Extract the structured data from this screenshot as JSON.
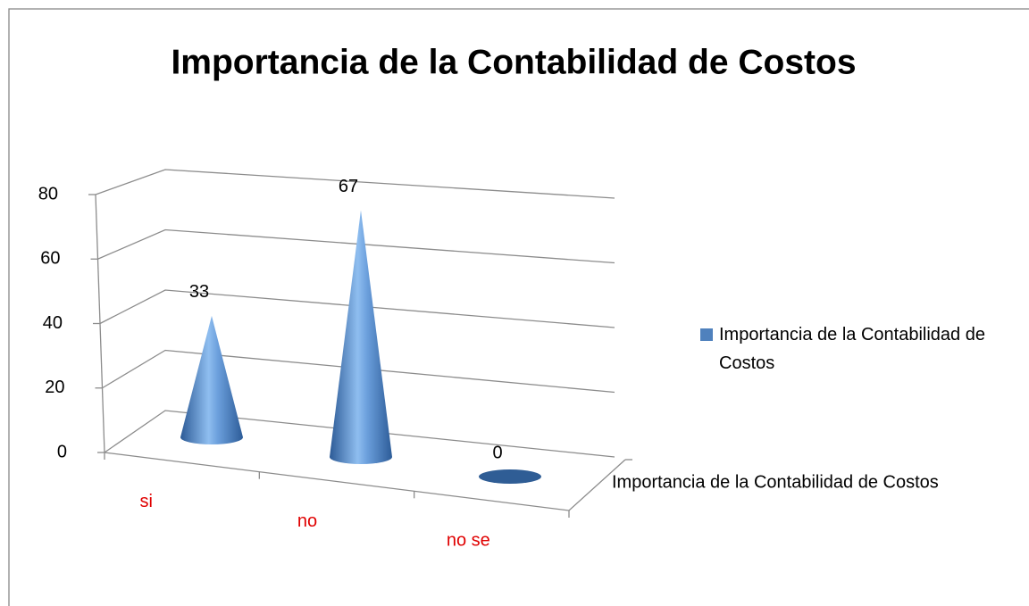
{
  "chart_data": {
    "type": "cone3d",
    "title": "Importancia de la Contabilidad de Costos",
    "categories": [
      "si",
      "no",
      "no se"
    ],
    "series": [
      {
        "name": "Importancia de la Contabilidad de Costos",
        "color": "#4f81bd",
        "values": [
          33,
          67,
          0
        ]
      }
    ],
    "ylim": [
      0,
      80
    ],
    "yticks": [
      0,
      20,
      40,
      60,
      80
    ],
    "grid": true,
    "category_color": "#e00000",
    "legend": "right"
  }
}
